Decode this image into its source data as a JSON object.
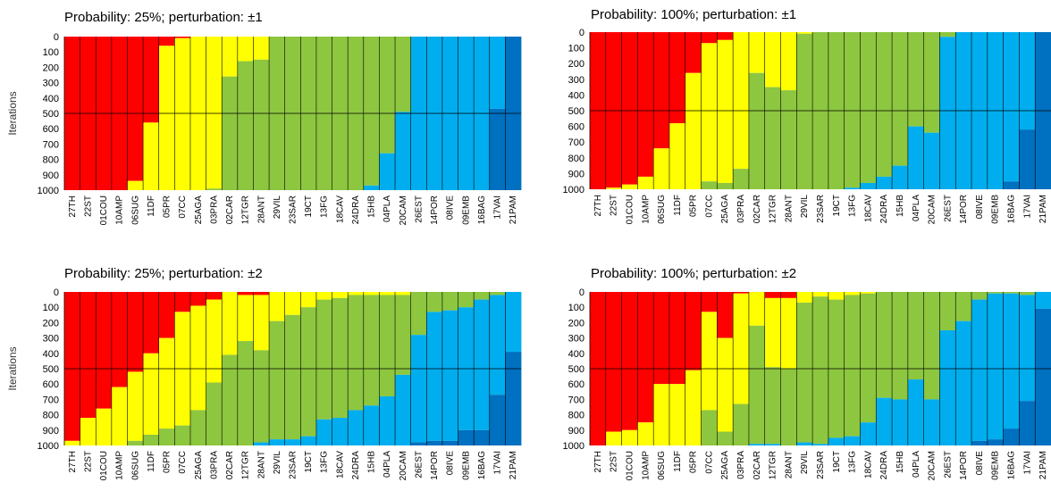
{
  "colors": {
    "red": "#FF0000",
    "yellow": "#FFFF00",
    "green": "#8DC63F",
    "lightblue": "#00AEEF",
    "darkblue": "#0070C0",
    "separator": "#000000"
  },
  "chart_data": [
    {
      "type": "bar",
      "stacked": true,
      "title": "Probability: 25%; perturbation: ±1",
      "ylabel": "Iterations",
      "ylim": [
        0,
        1000
      ],
      "y_inverted": true,
      "yticks": [
        "0",
        "100",
        "200",
        "300",
        "400",
        "500",
        "600",
        "700",
        "800",
        "900",
        "1000"
      ],
      "reference_line": 500,
      "categories": [
        "27TH",
        "22ST",
        "01COU",
        "10AMP",
        "06SUG",
        "11DF",
        "05PR",
        "07CC",
        "25AGA",
        "03PRA",
        "02CAR",
        "12TGR",
        "28ANT",
        "29VIL",
        "23SAR",
        "19CT",
        "13FG",
        "18CAV",
        "24DRA",
        "15HB",
        "04PLA",
        "20CAM",
        "26EST",
        "14POR",
        "08IVE",
        "09EMB",
        "16BAG",
        "17VAI",
        "21PAM"
      ],
      "series": [
        {
          "color": "red",
          "values": [
            1000,
            1000,
            1000,
            1000,
            940,
            560,
            60,
            10,
            0,
            0,
            0,
            0,
            0,
            0,
            0,
            0,
            0,
            0,
            0,
            0,
            0,
            0,
            0,
            0,
            0,
            0,
            0,
            0,
            0
          ]
        },
        {
          "color": "yellow",
          "values": [
            0,
            0,
            0,
            0,
            60,
            440,
            940,
            990,
            1000,
            990,
            260,
            160,
            150,
            0,
            0,
            0,
            0,
            0,
            0,
            0,
            0,
            0,
            0,
            0,
            0,
            0,
            0,
            0,
            0
          ]
        },
        {
          "color": "green",
          "values": [
            0,
            0,
            0,
            0,
            0,
            0,
            0,
            0,
            0,
            10,
            740,
            840,
            850,
            1000,
            1000,
            1000,
            1000,
            1000,
            1000,
            970,
            760,
            490,
            0,
            0,
            0,
            0,
            0,
            0,
            0
          ]
        },
        {
          "color": "lightblue",
          "values": [
            0,
            0,
            0,
            0,
            0,
            0,
            0,
            0,
            0,
            0,
            0,
            0,
            0,
            0,
            0,
            0,
            0,
            0,
            0,
            30,
            240,
            510,
            1000,
            1000,
            1000,
            1000,
            1000,
            470,
            0
          ]
        },
        {
          "color": "darkblue",
          "values": [
            0,
            0,
            0,
            0,
            0,
            0,
            0,
            0,
            0,
            0,
            0,
            0,
            0,
            0,
            0,
            0,
            0,
            0,
            0,
            0,
            0,
            0,
            0,
            0,
            0,
            0,
            0,
            530,
            1000
          ]
        }
      ]
    },
    {
      "type": "bar",
      "stacked": true,
      "title": "Probability: 100%; perturbation: ±1",
      "ylabel": "",
      "ylim": [
        0,
        1000
      ],
      "y_inverted": true,
      "yticks": [
        "0",
        "100",
        "200",
        "300",
        "400",
        "500",
        "600",
        "700",
        "800",
        "900",
        "1000"
      ],
      "reference_line": 500,
      "categories": [
        "27TH",
        "22ST",
        "01COU",
        "10AMP",
        "06SUG",
        "11DF",
        "05PR",
        "07CC",
        "25AGA",
        "03PRA",
        "02CAR",
        "12TGR",
        "28ANT",
        "29VIL",
        "23SAR",
        "19CT",
        "13FG",
        "18CAV",
        "24DRA",
        "15HB",
        "04PLA",
        "20CAM",
        "26EST",
        "14POR",
        "08IVE",
        "09EMB",
        "16BAG",
        "17VAI",
        "21PAM"
      ],
      "series": [
        {
          "color": "red",
          "values": [
            1000,
            990,
            970,
            920,
            740,
            580,
            260,
            70,
            50,
            0,
            0,
            0,
            0,
            0,
            0,
            0,
            0,
            0,
            0,
            0,
            0,
            0,
            0,
            0,
            0,
            0,
            0,
            0,
            0
          ]
        },
        {
          "color": "yellow",
          "values": [
            0,
            10,
            30,
            80,
            260,
            420,
            740,
            880,
            910,
            870,
            260,
            350,
            370,
            10,
            0,
            0,
            0,
            0,
            0,
            0,
            0,
            0,
            0,
            0,
            0,
            0,
            0,
            0,
            0
          ]
        },
        {
          "color": "green",
          "values": [
            0,
            0,
            0,
            0,
            0,
            0,
            0,
            50,
            40,
            130,
            740,
            650,
            630,
            990,
            1000,
            1000,
            990,
            960,
            920,
            850,
            600,
            640,
            30,
            0,
            0,
            0,
            0,
            0,
            0
          ]
        },
        {
          "color": "lightblue",
          "values": [
            0,
            0,
            0,
            0,
            0,
            0,
            0,
            0,
            0,
            0,
            0,
            0,
            0,
            0,
            0,
            0,
            10,
            40,
            80,
            150,
            400,
            360,
            970,
            1000,
            1000,
            1000,
            950,
            620,
            0
          ]
        },
        {
          "color": "darkblue",
          "values": [
            0,
            0,
            0,
            0,
            0,
            0,
            0,
            0,
            0,
            0,
            0,
            0,
            0,
            0,
            0,
            0,
            0,
            0,
            0,
            0,
            0,
            0,
            0,
            0,
            0,
            0,
            50,
            380,
            1000
          ]
        }
      ]
    },
    {
      "type": "bar",
      "stacked": true,
      "title": "Probability: 25%; perturbation: ±2",
      "ylabel": "Iterations",
      "ylim": [
        0,
        1000
      ],
      "y_inverted": true,
      "yticks": [
        "0",
        "100",
        "200",
        "300",
        "400",
        "500",
        "600",
        "700",
        "800",
        "900",
        "1000"
      ],
      "reference_line": 500,
      "categories": [
        "27TH",
        "22ST",
        "01COU",
        "10AMP",
        "06SUG",
        "11DF",
        "05PR",
        "07CC",
        "25AGA",
        "03PRA",
        "02CAR",
        "12TGR",
        "28ANT",
        "29VIL",
        "23SAR",
        "19CT",
        "13FG",
        "18CAV",
        "24DRA",
        "15HB",
        "04PLA",
        "20CAM",
        "26EST",
        "14POR",
        "08IVE",
        "09EMB",
        "16BAG",
        "17VAI",
        "21PAM"
      ],
      "series": [
        {
          "color": "red",
          "values": [
            970,
            820,
            760,
            620,
            520,
            400,
            300,
            130,
            90,
            50,
            0,
            20,
            20,
            0,
            0,
            0,
            0,
            0,
            0,
            0,
            0,
            0,
            0,
            0,
            0,
            0,
            0,
            0,
            0
          ]
        },
        {
          "color": "yellow",
          "values": [
            30,
            180,
            240,
            380,
            450,
            530,
            590,
            740,
            680,
            540,
            410,
            300,
            360,
            190,
            150,
            100,
            50,
            40,
            20,
            20,
            20,
            20,
            0,
            0,
            0,
            0,
            0,
            0,
            0
          ]
        },
        {
          "color": "green",
          "values": [
            0,
            0,
            0,
            0,
            30,
            70,
            110,
            130,
            230,
            410,
            590,
            680,
            600,
            770,
            810,
            840,
            780,
            780,
            750,
            720,
            660,
            520,
            280,
            130,
            120,
            100,
            50,
            20,
            0
          ]
        },
        {
          "color": "lightblue",
          "values": [
            0,
            0,
            0,
            0,
            0,
            0,
            0,
            0,
            0,
            0,
            0,
            0,
            20,
            40,
            40,
            60,
            170,
            180,
            230,
            260,
            320,
            460,
            700,
            840,
            850,
            800,
            850,
            650,
            390
          ]
        },
        {
          "color": "darkblue",
          "values": [
            0,
            0,
            0,
            0,
            0,
            0,
            0,
            0,
            0,
            0,
            0,
            0,
            0,
            0,
            0,
            0,
            0,
            0,
            0,
            0,
            0,
            0,
            20,
            30,
            30,
            100,
            100,
            330,
            610
          ]
        }
      ]
    },
    {
      "type": "bar",
      "stacked": true,
      "title": "Probability: 100%; perturbation: ±2",
      "ylabel": "",
      "ylim": [
        0,
        1000
      ],
      "y_inverted": true,
      "yticks": [
        "0",
        "100",
        "200",
        "300",
        "400",
        "500",
        "600",
        "700",
        "800",
        "900",
        "1000"
      ],
      "reference_line": 500,
      "categories": [
        "27TH",
        "22ST",
        "01COU",
        "10AMP",
        "06SUG",
        "11DF",
        "05PR",
        "07CC",
        "25AGA",
        "03PRA",
        "02CAR",
        "12TGR",
        "28ANT",
        "29VIL",
        "23SAR",
        "19CT",
        "13FG",
        "18CAV",
        "24DRA",
        "15HB",
        "04PLA",
        "20CAM",
        "26EST",
        "14POR",
        "08IVE",
        "09EMB",
        "16BAG",
        "17VAI",
        "21PAM"
      ],
      "series": [
        {
          "color": "red",
          "values": [
            1000,
            910,
            900,
            850,
            600,
            600,
            510,
            130,
            300,
            10,
            0,
            40,
            40,
            0,
            0,
            0,
            0,
            0,
            0,
            0,
            0,
            0,
            0,
            0,
            0,
            0,
            0,
            0,
            0
          ]
        },
        {
          "color": "yellow",
          "values": [
            0,
            90,
            100,
            150,
            400,
            400,
            490,
            640,
            610,
            720,
            220,
            450,
            460,
            70,
            30,
            50,
            20,
            10,
            0,
            0,
            0,
            0,
            0,
            0,
            0,
            0,
            0,
            0,
            0
          ]
        },
        {
          "color": "green",
          "values": [
            0,
            0,
            0,
            0,
            0,
            0,
            0,
            230,
            90,
            270,
            770,
            500,
            500,
            910,
            960,
            900,
            920,
            840,
            690,
            700,
            570,
            700,
            250,
            190,
            50,
            10,
            10,
            20,
            0
          ]
        },
        {
          "color": "lightblue",
          "values": [
            0,
            0,
            0,
            0,
            0,
            0,
            0,
            0,
            0,
            0,
            10,
            10,
            0,
            20,
            10,
            50,
            60,
            150,
            310,
            300,
            430,
            300,
            750,
            810,
            920,
            950,
            880,
            690,
            110
          ]
        },
        {
          "color": "darkblue",
          "values": [
            0,
            0,
            0,
            0,
            0,
            0,
            0,
            0,
            0,
            0,
            0,
            0,
            0,
            0,
            0,
            0,
            0,
            0,
            0,
            0,
            0,
            0,
            0,
            0,
            30,
            40,
            110,
            290,
            890
          ]
        }
      ]
    }
  ]
}
